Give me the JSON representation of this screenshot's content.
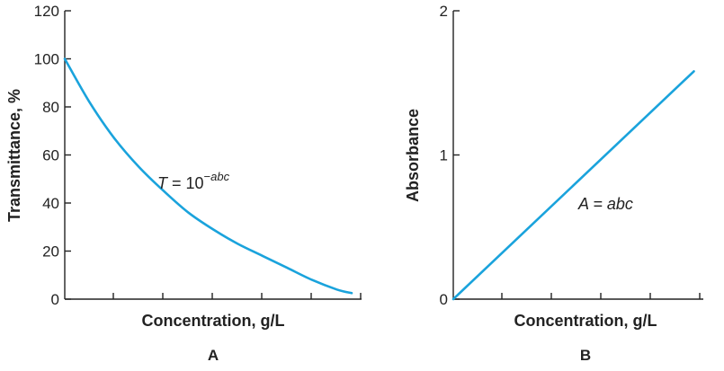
{
  "colors": {
    "series": "#1aa3dc",
    "axis": "#222222"
  },
  "chart_data": [
    {
      "type": "line",
      "panel_label": "A",
      "xlabel": "Concentration, g/L",
      "ylabel": "Transmittance, %",
      "ylim": [
        0,
        120
      ],
      "yticks": [
        0,
        20,
        40,
        60,
        80,
        100,
        120
      ],
      "xticks_count": 6,
      "x_tick_labels_shown": false,
      "annotation": {
        "base": "T = 10",
        "sup_minus": "−",
        "sup": "abc"
      },
      "series": [
        {
          "x": [
            0,
            0.5,
            1,
            1.5,
            2,
            2.5,
            3,
            3.5,
            4,
            4.5,
            5,
            5.5,
            5.8
          ],
          "values": [
            100,
            82,
            67,
            55,
            45,
            36,
            29,
            23,
            18,
            13,
            8,
            4,
            2.5
          ]
        }
      ],
      "xlim": [
        0,
        6
      ]
    },
    {
      "type": "line",
      "panel_label": "B",
      "xlabel": "Concentration, g/L",
      "ylabel": "Absorbance",
      "ylim": [
        0,
        2
      ],
      "yticks": [
        0,
        1,
        2
      ],
      "xticks_count": 5,
      "x_tick_labels_shown": false,
      "annotation": {
        "text": "A = abc"
      },
      "series": [
        {
          "x": [
            0,
            5.1
          ],
          "values": [
            0,
            1.58
          ]
        }
      ],
      "xlim": [
        0,
        5.3
      ]
    }
  ]
}
